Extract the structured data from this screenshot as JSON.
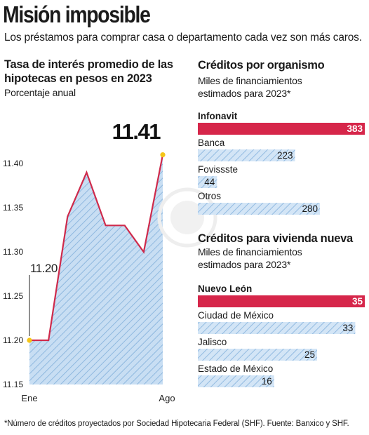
{
  "header": {
    "title": "Misión imposible",
    "subtitle": "Los préstamos para comprar casa o departamento cada vez son más caros."
  },
  "line_chart": {
    "title": "Tasa de interés promedio de las hipotecas en pesos en 2023",
    "subtitle": "Porcentaje anual"
  },
  "organismo_chart": {
    "title": "Créditos por organismo",
    "subtitle": "Miles de financiamientos estimados para 2023*"
  },
  "vivienda_chart": {
    "title": "Créditos para vivienda nueva",
    "subtitle": "Miles de financiamientos estimados para 2023*"
  },
  "footnote": "*Número de créditos proyectados por Sociedad Hipotecaria Federal (SHF). Fuente: Banxico y SHF.",
  "colors": {
    "highlight": "#d6264a",
    "line": "#cf2a4b",
    "area": "#c8def3",
    "hatch": "#8fb8df",
    "marker": "#f5c518"
  },
  "chart_data": [
    {
      "type": "area",
      "x": [
        "Ene",
        "Feb",
        "Mar",
        "Abr",
        "May",
        "Jun",
        "Jul",
        "Ago"
      ],
      "tick_labels_x": [
        "Ene",
        "Ago"
      ],
      "values": [
        11.2,
        11.2,
        11.34,
        11.39,
        11.33,
        11.33,
        11.3,
        11.41
      ],
      "ylim": [
        11.15,
        11.42
      ],
      "yticks": [
        11.15,
        11.2,
        11.25,
        11.3,
        11.35,
        11.4
      ],
      "yticks_labels": [
        "11.15",
        "11.20",
        "11.25",
        "11.30",
        "11.35",
        "11.40"
      ],
      "annotations": [
        {
          "text": "11.20",
          "x": "Ene",
          "y": 11.2
        },
        {
          "text": "11.41",
          "x": "Ago",
          "y": 11.41
        }
      ],
      "grid": false
    },
    {
      "type": "bar",
      "orientation": "horizontal",
      "categories": [
        "Infonavit",
        "Banca",
        "Fovissste",
        "Otros"
      ],
      "values": [
        383,
        223,
        44,
        280
      ],
      "value_labels": [
        "383",
        "223",
        "44",
        "280"
      ],
      "highlight": "Infonavit",
      "xlim": [
        0,
        383
      ]
    },
    {
      "type": "bar",
      "orientation": "horizontal",
      "categories": [
        "Nuevo León",
        "Ciudad de México",
        "Jalisco",
        "Estado de México"
      ],
      "values": [
        35,
        33,
        25,
        16
      ],
      "value_labels": [
        "35",
        "33",
        "25",
        "16"
      ],
      "highlight": "Nuevo León",
      "xlim": [
        0,
        35
      ]
    }
  ]
}
